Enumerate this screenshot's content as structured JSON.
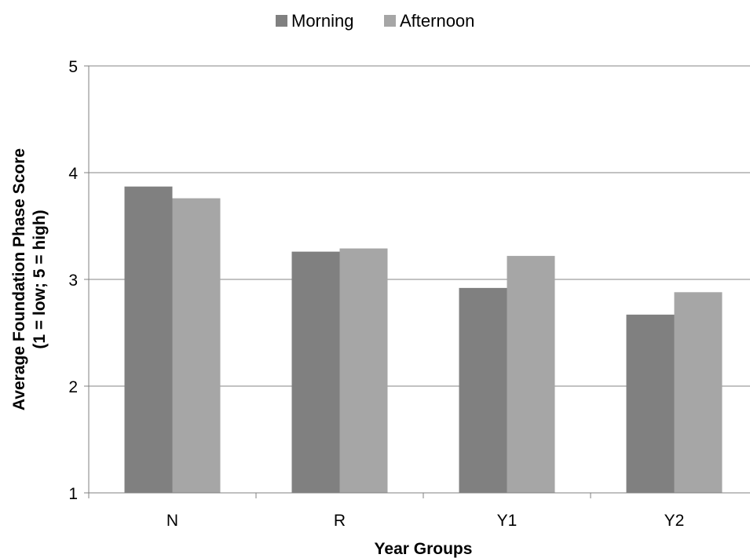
{
  "chart_data": {
    "type": "bar",
    "title": "",
    "categories": [
      "N",
      "R",
      "Y1",
      "Y2"
    ],
    "series": [
      {
        "name": "Morning",
        "values": [
          3.87,
          3.26,
          2.92,
          2.67
        ],
        "color": "#808080"
      },
      {
        "name": "Afternoon",
        "values": [
          3.76,
          3.29,
          3.22,
          2.88
        ],
        "color": "#a6a6a6"
      }
    ],
    "xlabel": "Year Groups",
    "ylabel": [
      "Average Foundation Phase Score",
      "(1 = low; 5 = high)"
    ],
    "ylim": [
      1,
      5
    ],
    "yticks": [
      1,
      2,
      3,
      4,
      5
    ],
    "grid": true,
    "legend_position": "top-center"
  }
}
